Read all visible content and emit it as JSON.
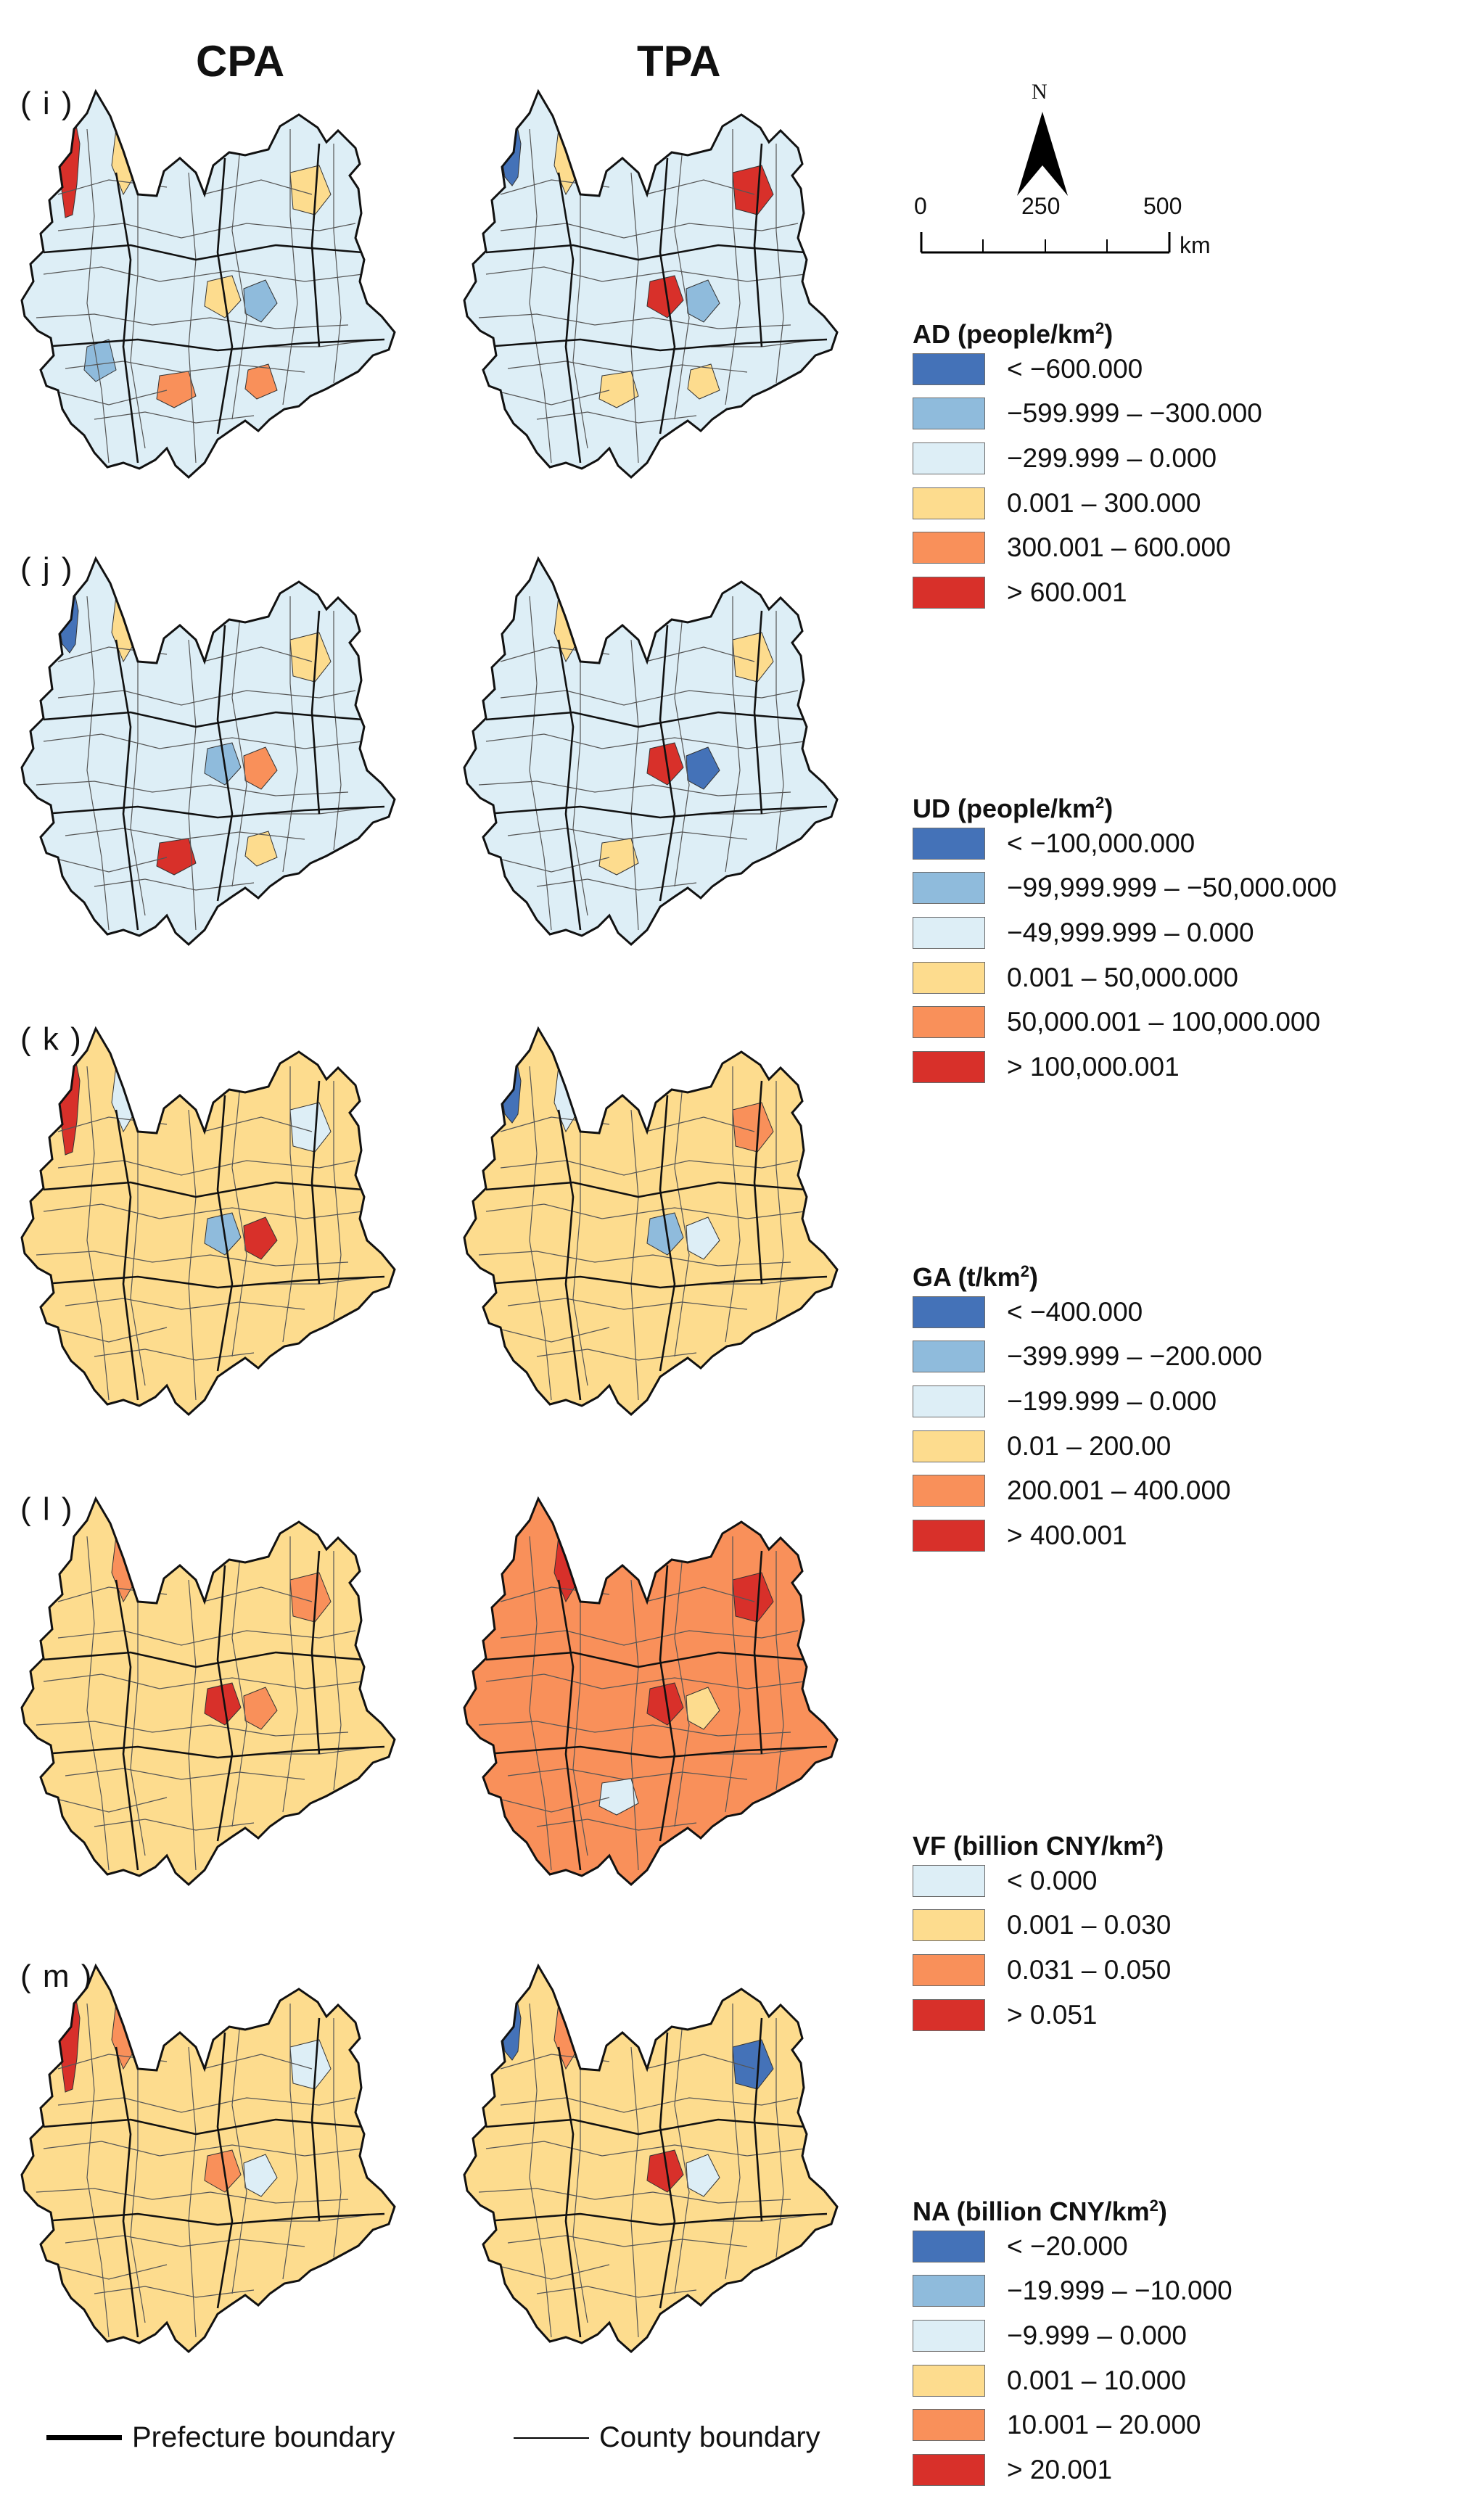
{
  "columns": [
    "CPA",
    "TPA"
  ],
  "colors": {
    "dark_blue": "#4472b8",
    "mid_blue": "#8fbbdc",
    "pale_blue": "#ddeef6",
    "yellow": "#fddc8e",
    "orange": "#f9905a",
    "red": "#d8302a"
  },
  "north_arrow": {
    "label": "N",
    "icon": "north-arrow-icon"
  },
  "scale_bar": {
    "ticks": [
      "0",
      "250",
      "500"
    ],
    "unit": "km"
  },
  "panels": [
    {
      "label": "( i )",
      "cpa": {
        "base": "pale_blue",
        "patches": [
          "red-west",
          "yellow",
          "yellow",
          "yellow",
          "mid_blue",
          "orange",
          "orange",
          "mid_blue"
        ]
      },
      "tpa": {
        "base": "pale_blue",
        "patches": [
          "blue-west",
          "yellow",
          "red",
          "red",
          "mid_blue",
          "yellow",
          "yellow"
        ]
      }
    },
    {
      "label": "( j )",
      "cpa": {
        "base": "pale_blue",
        "patches": [
          "blue-west",
          "yellow",
          "yellow",
          "mid_blue",
          "orange",
          "red",
          "yellow"
        ]
      },
      "tpa": {
        "base": "pale_blue",
        "patches": [
          "yellow",
          "yellow",
          "red",
          "dark_blue",
          "yellow"
        ]
      }
    },
    {
      "label": "( k )",
      "cpa": {
        "base": "yellow",
        "patches": [
          "red-west",
          "pale_blue",
          "pale_blue",
          "mid_blue",
          "red"
        ]
      },
      "tpa": {
        "base": "yellow",
        "patches": [
          "blue-west",
          "pale_blue",
          "orange",
          "mid_blue",
          "pale_blue"
        ]
      }
    },
    {
      "label": "( l )",
      "cpa": {
        "base": "yellow",
        "patches": [
          "orange",
          "orange",
          "red",
          "orange"
        ]
      },
      "tpa": {
        "base": "orange",
        "patches": [
          "red",
          "red",
          "red",
          "yellow",
          "pale_blue"
        ]
      }
    },
    {
      "label": "( m )",
      "cpa": {
        "base": "yellow",
        "patches": [
          "red-west",
          "orange",
          "pale_blue",
          "orange",
          "pale_blue"
        ]
      },
      "tpa": {
        "base": "yellow",
        "patches": [
          "blue-west",
          "orange",
          "dark_blue",
          "red",
          "pale_blue"
        ]
      }
    }
  ],
  "legends": [
    {
      "title": "AD (people/km",
      "title_sup": "2",
      "title_close": ")",
      "items": [
        {
          "color": "dark_blue",
          "label": "< −600.000"
        },
        {
          "color": "mid_blue",
          "label": "−599.999 – −300.000"
        },
        {
          "color": "pale_blue",
          "label": "−299.999 – 0.000"
        },
        {
          "color": "yellow",
          "label": "0.001 – 300.000"
        },
        {
          "color": "orange",
          "label": "300.001 – 600.000"
        },
        {
          "color": "red",
          "label": "> 600.001"
        }
      ]
    },
    {
      "title": "UD  (people/km",
      "title_sup": "2",
      "title_close": ")",
      "items": [
        {
          "color": "dark_blue",
          "label": "< −100,000.000"
        },
        {
          "color": "mid_blue",
          "label": "−99,999.999 – −50,000.000"
        },
        {
          "color": "pale_blue",
          "label": "−49,999.999 – 0.000"
        },
        {
          "color": "yellow",
          "label": "0.001 – 50,000.000"
        },
        {
          "color": "orange",
          "label": "50,000.001 – 100,000.000"
        },
        {
          "color": "red",
          "label": "> 100,000.001"
        }
      ]
    },
    {
      "title": "GA  (t/km",
      "title_sup": "2",
      "title_close": ")",
      "items": [
        {
          "color": "dark_blue",
          "label": "< −400.000"
        },
        {
          "color": "mid_blue",
          "label": "−399.999 – −200.000"
        },
        {
          "color": "pale_blue",
          "label": "−199.999 – 0.000"
        },
        {
          "color": "yellow",
          "label": "0.01 – 200.00"
        },
        {
          "color": "orange",
          "label": "200.001 – 400.000"
        },
        {
          "color": "red",
          "label": "> 400.001"
        }
      ]
    },
    {
      "title": "VF  (billion CNY/km",
      "title_sup": "2",
      "title_close": ")",
      "items": [
        {
          "color": "pale_blue",
          "label": "< 0.000"
        },
        {
          "color": "yellow",
          "label": "0.001 – 0.030"
        },
        {
          "color": "orange",
          "label": "0.031 – 0.050"
        },
        {
          "color": "red",
          "label": "> 0.051"
        }
      ]
    },
    {
      "title": "NA  (billion CNY/km",
      "title_sup": "2",
      "title_close": ")",
      "items": [
        {
          "color": "dark_blue",
          "label": "< −20.000"
        },
        {
          "color": "mid_blue",
          "label": "−19.999 – −10.000"
        },
        {
          "color": "pale_blue",
          "label": "−9.999 – 0.000"
        },
        {
          "color": "yellow",
          "label": "0.001 – 10.000"
        },
        {
          "color": "orange",
          "label": "10.001 – 20.000"
        },
        {
          "color": "red",
          "label": "> 20.001"
        }
      ]
    }
  ],
  "boundary_legend": {
    "prefecture": "Prefecture boundary",
    "county": "County boundary"
  }
}
